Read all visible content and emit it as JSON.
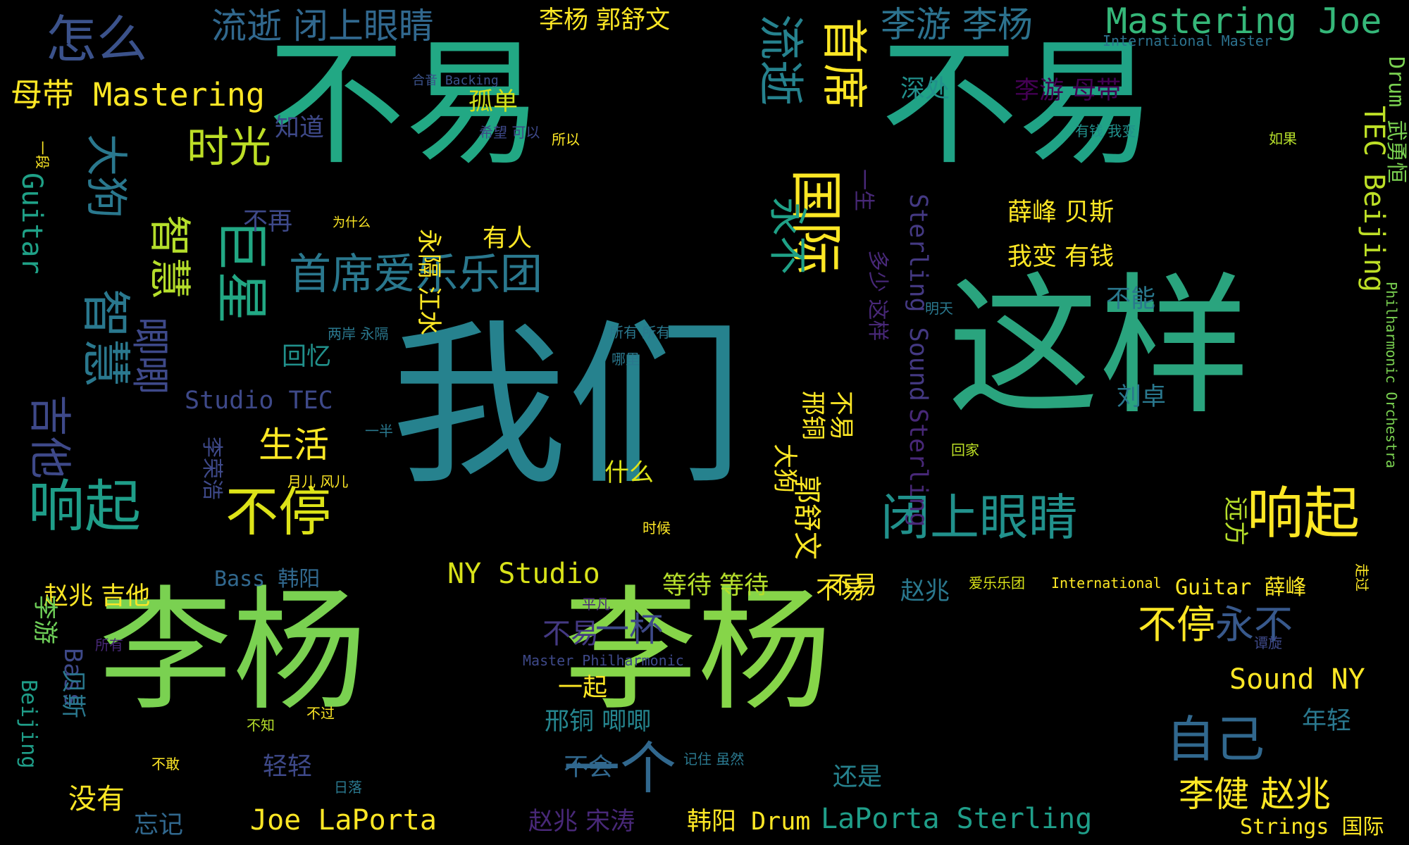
{
  "palette": {
    "background": "#000000",
    "viridis": [
      "#440154",
      "#482878",
      "#3e4989",
      "#31688e",
      "#26828e",
      "#1f9e89",
      "#35b779",
      "#6ece58",
      "#b5de2b",
      "#fde725"
    ]
  },
  "words": [
    {
      "text": "我们",
      "color": "#26828e"
    },
    {
      "text": "这样",
      "color": "#2aa47e"
    },
    {
      "text": "李杨",
      "color": "#7ad151"
    },
    {
      "text": "李杨",
      "color": "#86d549"
    },
    {
      "text": "不易",
      "color": "#22a884"
    },
    {
      "text": "不易",
      "color": "#20a386"
    },
    {
      "text": "闭上眼睛",
      "color": "#21918c"
    },
    {
      "text": "响起",
      "color": "#1f9e89"
    },
    {
      "text": "响起",
      "color": "#fde725"
    },
    {
      "text": "不停",
      "color": "#dde318"
    },
    {
      "text": "一个",
      "color": "#31688e"
    },
    {
      "text": "首席爱乐乐团",
      "color": "#2a788e"
    },
    {
      "text": "流逝",
      "color": "#26828e"
    },
    {
      "text": "首席",
      "color": "#fde725"
    },
    {
      "text": "国际",
      "color": "#fde725"
    },
    {
      "text": "永不",
      "color": "#1fa187"
    },
    {
      "text": "怎么",
      "color": "#3b528b"
    },
    {
      "text": "流逝 闭上眼睛",
      "color": "#31688e"
    },
    {
      "text": "李杨 郭舒文",
      "color": "#fde725"
    },
    {
      "text": "李游 李杨",
      "color": "#2c728e"
    },
    {
      "text": "Mastering Joe",
      "color": "#35b779"
    },
    {
      "text": "International Master",
      "color": "#2c728e"
    },
    {
      "text": "母带 Mastering",
      "color": "#fde725"
    },
    {
      "text": "时光",
      "color": "#bddf26"
    },
    {
      "text": "大狗",
      "color": "#2a788e"
    },
    {
      "text": "智慧",
      "color": "#b5de2b"
    },
    {
      "text": "巨星",
      "color": "#22a884"
    },
    {
      "text": "智慧",
      "color": "#2a788e"
    },
    {
      "text": "唧唧",
      "color": "#3e4989"
    },
    {
      "text": "吉他",
      "color": "#3e4989"
    },
    {
      "text": "Guitar",
      "color": "#1fa187"
    },
    {
      "text": "合音 Backing",
      "color": "#3b528b"
    },
    {
      "text": "孤单",
      "color": "#d2e21b"
    },
    {
      "text": "希望 可以",
      "color": "#3e4989"
    },
    {
      "text": "深处",
      "color": "#21918c"
    },
    {
      "text": "李游 母带",
      "color": "#440154"
    },
    {
      "text": "所以",
      "color": "#fde725"
    },
    {
      "text": "有钱 我变",
      "color": "#21918c"
    },
    {
      "text": "如果",
      "color": "#b5de2b"
    },
    {
      "text": "知道",
      "color": "#3e4989"
    },
    {
      "text": "一段",
      "color": "#fde725"
    },
    {
      "text": "TEC Beijing",
      "color": "#bddf26"
    },
    {
      "text": "Drum 武勇恒",
      "color": "#7ad151"
    },
    {
      "text": "Philharmonic Orchestra",
      "color": "#7ad151"
    },
    {
      "text": "薛峰 贝斯",
      "color": "#fde725"
    },
    {
      "text": "我变 有钱",
      "color": "#fde725"
    },
    {
      "text": "有人",
      "color": "#fde725"
    },
    {
      "text": "不再",
      "color": "#3e4989"
    },
    {
      "text": "为什么",
      "color": "#fde725"
    },
    {
      "text": "永隔 江水",
      "color": "#fde725"
    },
    {
      "text": "一生",
      "color": "#482878"
    },
    {
      "text": "多少 这样",
      "color": "#482878"
    },
    {
      "text": "Sterling Sound",
      "color": "#443983"
    },
    {
      "text": "Sterling",
      "color": "#482878"
    },
    {
      "text": "不能",
      "color": "#2a788e"
    },
    {
      "text": "两岸 永隔",
      "color": "#2a788e"
    },
    {
      "text": "所有 所有",
      "color": "#2a788e"
    },
    {
      "text": "明天",
      "color": "#2a788e"
    },
    {
      "text": "回忆",
      "color": "#21918c"
    },
    {
      "text": "哪里",
      "color": "#2a788e"
    },
    {
      "text": "Studio TEC",
      "color": "#3e4989"
    },
    {
      "text": "刘卓",
      "color": "#2a788e"
    },
    {
      "text": "生活",
      "color": "#fde725"
    },
    {
      "text": "一半",
      "color": "#2a788e"
    },
    {
      "text": "回家",
      "color": "#bddf26"
    },
    {
      "text": "月儿 风儿",
      "color": "#fde725"
    },
    {
      "text": "李荣浩",
      "color": "#3e4989"
    },
    {
      "text": "什么",
      "color": "#dde318"
    },
    {
      "text": "邢铜",
      "color": "#fde725"
    },
    {
      "text": "不易",
      "color": "#fde725"
    },
    {
      "text": "大狗",
      "color": "#fde725"
    },
    {
      "text": "郭舒文",
      "color": "#fde725"
    },
    {
      "text": "远方",
      "color": "#b5de2b"
    },
    {
      "text": "时候",
      "color": "#fde725"
    },
    {
      "text": "NY Studio",
      "color": "#d8e219"
    },
    {
      "text": "等待 等待",
      "color": "#b5de2b"
    },
    {
      "text": "Bass 韩阳",
      "color": "#31688e"
    },
    {
      "text": "赵兆 吉他",
      "color": "#fde725"
    },
    {
      "text": "不易",
      "color": "#fde725"
    },
    {
      "text": "赵兆",
      "color": "#2a788e"
    },
    {
      "text": "爱乐乐团",
      "color": "#d8e219"
    },
    {
      "text": "International",
      "color": "#fde725"
    },
    {
      "text": "Guitar 薛峰",
      "color": "#fde725"
    },
    {
      "text": "平凡",
      "color": "#482878"
    },
    {
      "text": "李游",
      "color": "#6ece58"
    },
    {
      "text": "Bass",
      "color": "#3e4989"
    },
    {
      "text": "所有",
      "color": "#482878"
    },
    {
      "text": "不易",
      "color": "#443983"
    },
    {
      "text": "一杯",
      "color": "#3e4989"
    },
    {
      "text": "不停",
      "color": "#fde725"
    },
    {
      "text": "永不",
      "color": "#38598c"
    },
    {
      "text": "谭旋",
      "color": "#3e4989"
    },
    {
      "text": "Master Philharmonic",
      "color": "#3e4989"
    },
    {
      "text": "Sound NY",
      "color": "#fde725"
    },
    {
      "text": "一起",
      "color": "#fde725"
    },
    {
      "text": "Beijing",
      "color": "#1f9e89"
    },
    {
      "text": "贝斯",
      "color": "#2a788e"
    },
    {
      "text": "邢铜 唧唧",
      "color": "#25858e"
    },
    {
      "text": "年轻",
      "color": "#2a788e"
    },
    {
      "text": "不知",
      "color": "#b5de2b"
    },
    {
      "text": "不过",
      "color": "#fde725"
    },
    {
      "text": "自己",
      "color": "#31688e"
    },
    {
      "text": "不敢",
      "color": "#fde725"
    },
    {
      "text": "不会",
      "color": "#31688e"
    },
    {
      "text": "记住 虽然",
      "color": "#2a788e"
    },
    {
      "text": "还是",
      "color": "#26828e"
    },
    {
      "text": "李健 赵兆",
      "color": "#fde725"
    },
    {
      "text": "轻轻",
      "color": "#3e4989"
    },
    {
      "text": "日落",
      "color": "#2a788e"
    },
    {
      "text": "没有",
      "color": "#fde725"
    },
    {
      "text": "忘记",
      "color": "#31688e"
    },
    {
      "text": "Joe LaPorta",
      "color": "#fde725"
    },
    {
      "text": "赵兆 宋涛",
      "color": "#482878"
    },
    {
      "text": "韩阳 Drum",
      "color": "#fde725"
    },
    {
      "text": "LaPorta Sterling",
      "color": "#1f9e89"
    },
    {
      "text": "Strings 国际",
      "color": "#fde725"
    },
    {
      "text": "走过",
      "color": "#fde725"
    },
    {
      "text": "不易",
      "color": "#fde725"
    }
  ]
}
